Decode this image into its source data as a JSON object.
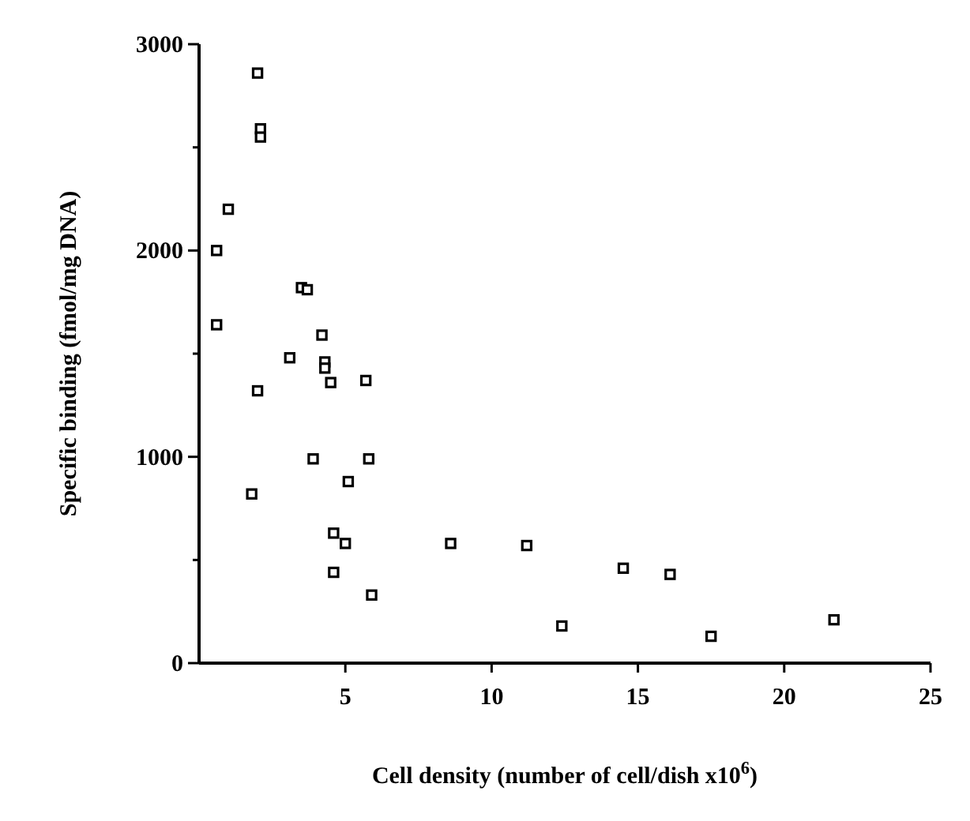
{
  "chart_data": {
    "type": "scatter",
    "xlabel": "Cell density (number of cell/dish x10$^{6}$)",
    "ylabel": "Specific binding (fmol/mg DNA)",
    "xlim": [
      0,
      25
    ],
    "xticks": [
      5,
      10,
      15,
      20,
      25
    ],
    "ylim": [
      0,
      3000
    ],
    "yticks": [
      0,
      {
        "value": 500,
        "label": null
      },
      1000,
      {
        "value": 1500,
        "label": null
      },
      2000,
      {
        "value": 2500,
        "label": null
      },
      3000
    ],
    "grid": false,
    "marker": "square",
    "series": [
      {
        "color": "#000000",
        "x": [
          2.0,
          2.1,
          2.1,
          1.0,
          0.6,
          0.6,
          3.5,
          3.7,
          4.2,
          3.1,
          4.3,
          4.3,
          4.5,
          5.7,
          2.0,
          3.9,
          5.8,
          5.1,
          1.8,
          4.6,
          5.0,
          4.6,
          5.9,
          8.6,
          11.2,
          14.5,
          16.1,
          12.4,
          17.5,
          21.7
        ],
        "values": [
          2860,
          2590,
          2550,
          2200,
          2000,
          1640,
          1820,
          1810,
          1590,
          1480,
          1460,
          1430,
          1360,
          1370,
          1320,
          990,
          990,
          880,
          820,
          630,
          580,
          440,
          330,
          580,
          570,
          460,
          430,
          180,
          130,
          210
        ]
      }
    ]
  }
}
